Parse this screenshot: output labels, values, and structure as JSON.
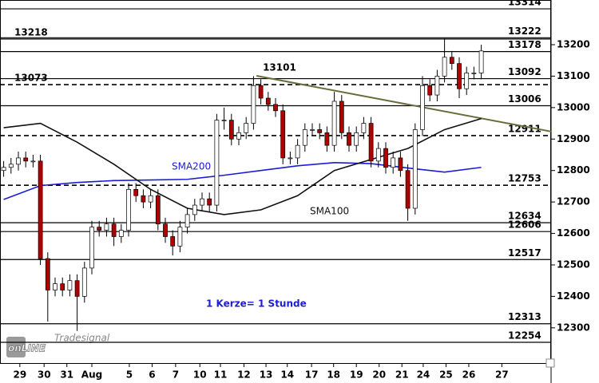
{
  "chart_data": {
    "type": "candlestick",
    "xlim": [
      -0.5,
      74.5
    ],
    "ylim": [
      12188,
      13342
    ],
    "yticks": [
      12300,
      12400,
      12500,
      12600,
      12700,
      12800,
      12900,
      13000,
      13100,
      13200
    ],
    "xticks": [
      {
        "value": 2.2,
        "label": "29"
      },
      {
        "value": 5.5,
        "label": "30"
      },
      {
        "value": 8.6,
        "label": "31"
      },
      {
        "value": 12.0,
        "label": "Aug"
      },
      {
        "value": 17.1,
        "label": "5"
      },
      {
        "value": 20.2,
        "label": "6"
      },
      {
        "value": 23.4,
        "label": "7"
      },
      {
        "value": 26.7,
        "label": "10"
      },
      {
        "value": 29.5,
        "label": "11"
      },
      {
        "value": 32.7,
        "label": "12"
      },
      {
        "value": 35.7,
        "label": "13"
      },
      {
        "value": 38.6,
        "label": "14"
      },
      {
        "value": 41.9,
        "label": "17"
      },
      {
        "value": 44.9,
        "label": "18"
      },
      {
        "value": 48.0,
        "label": "19"
      },
      {
        "value": 51.1,
        "label": "20"
      },
      {
        "value": 54.2,
        "label": "21"
      },
      {
        "value": 57.1,
        "label": "24"
      },
      {
        "value": 60.2,
        "label": "25"
      },
      {
        "value": 63.3,
        "label": "26"
      },
      {
        "value": 67.8,
        "label": "27"
      }
    ],
    "up_color": "#ffffff",
    "down_color": "#b00000",
    "ohlc": {
      "open": [
        12800,
        12810,
        12820,
        12840,
        12830,
        12830,
        12520,
        12420,
        12440,
        12420,
        12450,
        12400,
        12490,
        12620,
        12610,
        12630,
        12590,
        12610,
        12740,
        12720,
        12700,
        12720,
        12630,
        12590,
        12560,
        12620,
        12660,
        12690,
        12710,
        12690,
        12960,
        12960,
        12900,
        12920,
        12950,
        13070,
        13030,
        13010,
        12990,
        12840,
        12840,
        12880,
        12930,
        12930,
        12920,
        12880,
        13020,
        12920,
        12880,
        12920,
        12950,
        12830,
        12870,
        12810,
        12840,
        12800,
        12680,
        12930,
        13070,
        13040,
        13100,
        13160,
        13140,
        13060,
        13110,
        13110
      ],
      "high": [
        12830,
        12840,
        12860,
        12860,
        12850,
        12850,
        12540,
        12460,
        12460,
        12470,
        12470,
        12510,
        12640,
        12640,
        12650,
        12650,
        12630,
        12760,
        12760,
        12740,
        12740,
        12740,
        12650,
        12610,
        12640,
        12680,
        12710,
        12730,
        12730,
        12980,
        13000,
        12980,
        12940,
        12970,
        13100,
        13090,
        13050,
        13030,
        13010,
        12860,
        12900,
        12950,
        12950,
        12950,
        12940,
        13050,
        13040,
        12940,
        12940,
        12970,
        12970,
        12890,
        12890,
        12860,
        12860,
        12820,
        12950,
        13100,
        13090,
        13120,
        13220,
        13180,
        13160,
        13130,
        13130,
        13200
      ],
      "low": [
        12780,
        12790,
        12800,
        12810,
        12810,
        12500,
        12320,
        12400,
        12400,
        12400,
        12290,
        12380,
        12470,
        12590,
        12590,
        12560,
        12570,
        12590,
        12700,
        12680,
        12680,
        12610,
        12570,
        12530,
        12540,
        12600,
        12640,
        12670,
        12670,
        12670,
        12930,
        12880,
        12880,
        12900,
        12930,
        13010,
        12990,
        12970,
        12820,
        12820,
        12820,
        12860,
        12910,
        12900,
        12860,
        12860,
        12900,
        12860,
        12860,
        12900,
        12810,
        12810,
        12790,
        12790,
        12780,
        12640,
        12660,
        12910,
        13020,
        13020,
        13080,
        13120,
        13030,
        13040,
        13090,
        13090
      ],
      "close": [
        12810,
        12820,
        12840,
        12830,
        12830,
        12520,
        12420,
        12440,
        12420,
        12450,
        12400,
        12490,
        12620,
        12610,
        12630,
        12590,
        12610,
        12740,
        12720,
        12700,
        12720,
        12630,
        12590,
        12560,
        12620,
        12660,
        12690,
        12710,
        12690,
        12960,
        12960,
        12900,
        12920,
        12950,
        13070,
        13030,
        13010,
        12990,
        12840,
        12840,
        12880,
        12930,
        12930,
        12920,
        12880,
        13020,
        12920,
        12880,
        12920,
        12950,
        12830,
        12870,
        12810,
        12840,
        12800,
        12680,
        12930,
        13070,
        13040,
        13100,
        13160,
        13140,
        13060,
        13110,
        13110,
        13180
      ]
    },
    "lines": [
      {
        "name": "SMA200",
        "color": "#1c1cd4",
        "x": [
          0,
          5,
          10,
          15,
          20,
          25,
          30,
          35,
          40,
          45,
          50,
          55,
          60,
          65
        ],
        "values": [
          12708,
          12752,
          12762,
          12768,
          12770,
          12772,
          12785,
          12800,
          12815,
          12825,
          12822,
          12808,
          12795,
          12810
        ]
      },
      {
        "name": "SMA100",
        "color": "#111111",
        "x": [
          0,
          5,
          10,
          15,
          20,
          25,
          30,
          35,
          40,
          45,
          50,
          55,
          60,
          65
        ],
        "values": [
          12936,
          12950,
          12890,
          12820,
          12740,
          12680,
          12660,
          12675,
          12720,
          12800,
          12835,
          12870,
          12930,
          12965
        ]
      }
    ],
    "trendline": {
      "color": "#6b6b3a",
      "x": [
        34.4,
        74.5
      ],
      "y": [
        13101,
        12924
      ]
    },
    "levels": [
      {
        "value": 13314,
        "side": "right",
        "style": "solid"
      },
      {
        "value": 13222,
        "side": "right",
        "style": "solid"
      },
      {
        "value": 13218,
        "side": "left",
        "style": "solid"
      },
      {
        "value": 13178,
        "side": "right",
        "style": "solid"
      },
      {
        "value": 13092,
        "side": "right",
        "style": "solid"
      },
      {
        "value": 13073,
        "side": "left",
        "style": "dashed"
      },
      {
        "value": 13006,
        "side": "right",
        "style": "solid"
      },
      {
        "value": 12911,
        "side": "right",
        "style": "dashed"
      },
      {
        "value": 12753,
        "side": "right",
        "style": "dashed"
      },
      {
        "value": 12634,
        "side": "right",
        "style": "solid"
      },
      {
        "value": 12606,
        "side": "right",
        "style": "solid"
      },
      {
        "value": 12517,
        "side": "right",
        "style": "solid"
      },
      {
        "value": 12313,
        "side": "right",
        "style": "solid"
      },
      {
        "value": 12254,
        "side": "right",
        "style": "solid"
      }
    ],
    "note": "1 Kerze= 1 Stunde",
    "logo": {
      "main": "onLINE",
      "sub": "Tradesignal"
    }
  }
}
